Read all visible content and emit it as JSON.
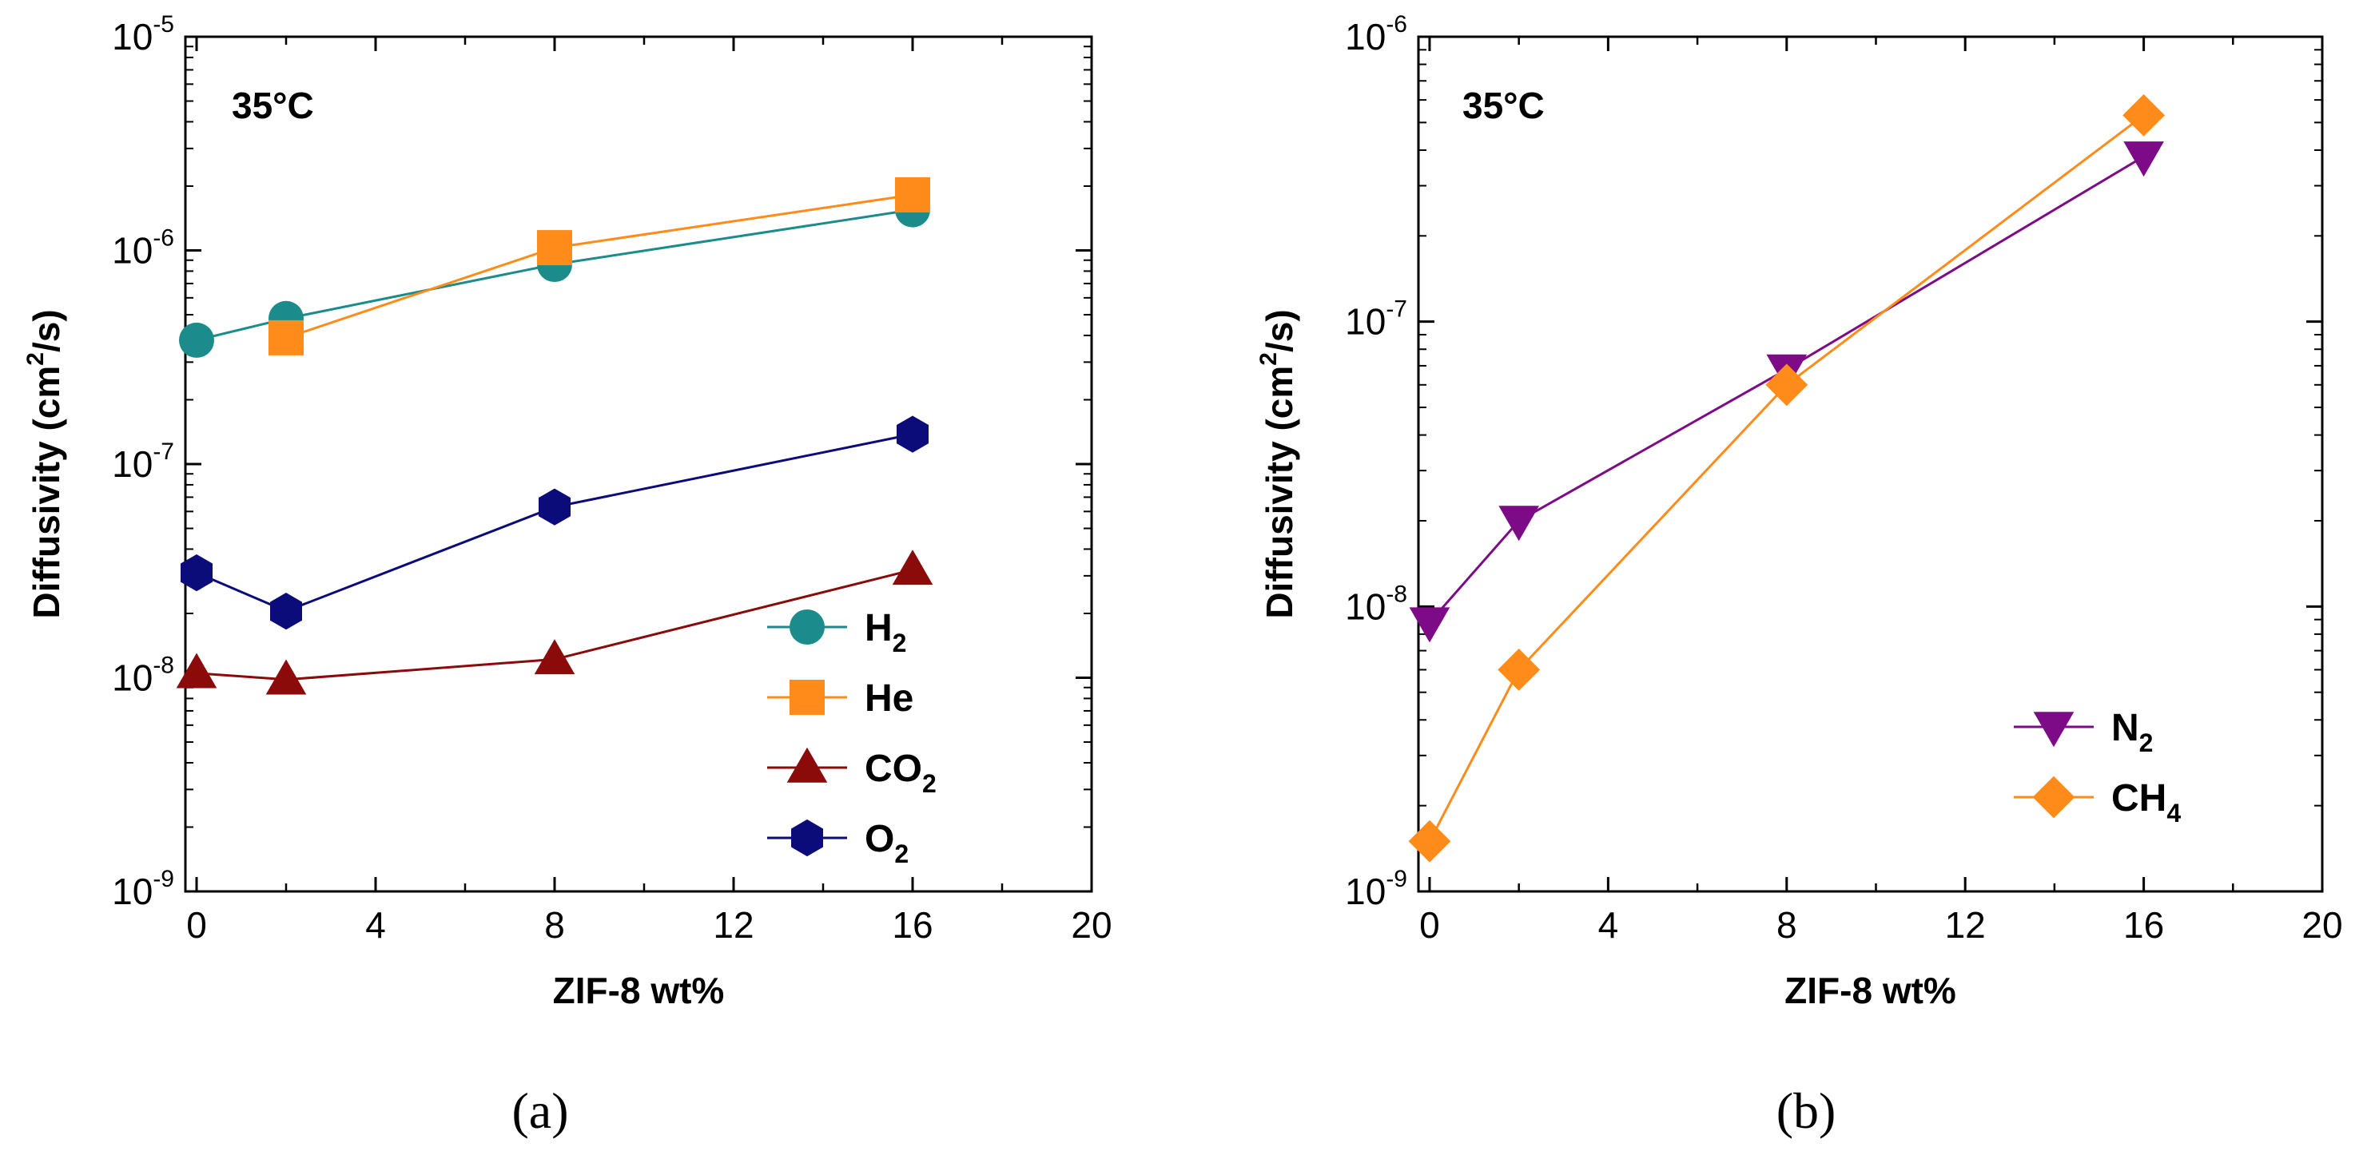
{
  "chart_data": [
    {
      "type": "line",
      "panel_label": "(a)",
      "annotation": "35°C",
      "xlabel": "ZIF-8 wt%",
      "ylabel": {
        "pre": "Diffusivity (cm",
        "sup": "2",
        "post": "/s)"
      },
      "xlim": [
        0,
        20
      ],
      "xticks": [
        "0",
        "4",
        "8",
        "12",
        "16",
        "20"
      ],
      "ylim": [
        1e-09,
        1e-05
      ],
      "yscale": "log",
      "yticks": [
        {
          "base": "10",
          "exp": "-9"
        },
        {
          "base": "10",
          "exp": "-8"
        },
        {
          "base": "10",
          "exp": "-7"
        },
        {
          "base": "10",
          "exp": "-6"
        },
        {
          "base": "10",
          "exp": "-5"
        }
      ],
      "legend_position": "lower-right",
      "series": [
        {
          "name": "H",
          "sub": "2",
          "color": "#1b8b8b",
          "marker": "circle",
          "x": [
            0,
            2,
            8,
            16
          ],
          "values": [
            3.8e-07,
            4.8e-07,
            8.6e-07,
            1.55e-06
          ]
        },
        {
          "name": "He",
          "sub": "",
          "color": "#ff8c1a",
          "marker": "square",
          "x": [
            2,
            8,
            16
          ],
          "values": [
            3.9e-07,
            1.03e-06,
            1.82e-06
          ]
        },
        {
          "name": "CO",
          "sub": "2",
          "color": "#8b0a0a",
          "marker": "triangle-up",
          "x": [
            0,
            2,
            8,
            16
          ],
          "values": [
            1.05e-08,
            9.8e-09,
            1.22e-08,
            3.2e-08
          ]
        },
        {
          "name": "O",
          "sub": "2",
          "color": "#0b0b7a",
          "marker": "hexagon",
          "x": [
            0,
            2,
            8,
            16
          ],
          "values": [
            3.1e-08,
            2.05e-08,
            6.3e-08,
            1.38e-07
          ]
        }
      ]
    },
    {
      "type": "line",
      "panel_label": "(b)",
      "annotation": "35°C",
      "xlabel": "ZIF-8 wt%",
      "ylabel": {
        "pre": "Diffusivity (cm",
        "sup": "2",
        "post": "/s)"
      },
      "xlim": [
        0,
        20
      ],
      "xticks": [
        "0",
        "4",
        "8",
        "12",
        "16",
        "20"
      ],
      "ylim": [
        1e-09,
        1e-06
      ],
      "yscale": "log",
      "yticks": [
        {
          "base": "10",
          "exp": "-9"
        },
        {
          "base": "10",
          "exp": "-8"
        },
        {
          "base": "10",
          "exp": "-7"
        },
        {
          "base": "10",
          "exp": "-6"
        }
      ],
      "legend_position": "lower-right",
      "series": [
        {
          "name": "N",
          "sub": "2",
          "color": "#7d0a87",
          "marker": "triangle-down",
          "x": [
            0,
            2,
            8,
            16
          ],
          "values": [
            8.8e-09,
            2e-08,
            6.8e-08,
            3.8e-07
          ]
        },
        {
          "name": "CH",
          "sub": "4",
          "color": "#ff8c1a",
          "marker": "diamond",
          "x": [
            0,
            2,
            8,
            16
          ],
          "values": [
            1.5e-09,
            6e-09,
            6e-08,
            5.3e-07
          ]
        }
      ]
    }
  ]
}
